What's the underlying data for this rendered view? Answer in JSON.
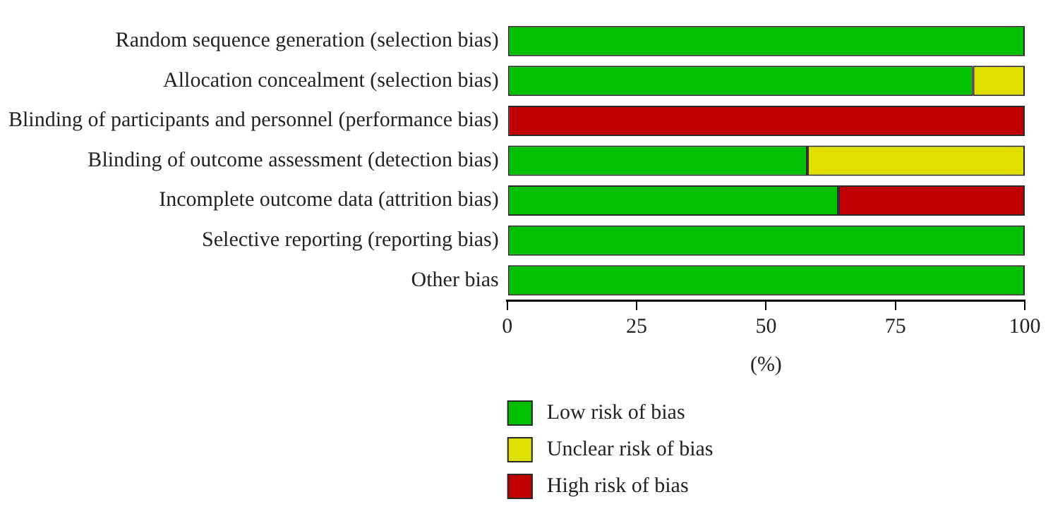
{
  "chart_data": {
    "type": "bar",
    "orientation": "horizontal",
    "stacked": true,
    "xlabel": "(%)",
    "categories": [
      "Random sequence generation (selection bias)",
      "Allocation concealment (selection bias)",
      "Blinding of participants and personnel (performance bias)",
      "Blinding of outcome assessment (detection bias)",
      "Incomplete outcome data (attrition bias)",
      "Selective reporting (reporting bias)",
      "Other bias"
    ],
    "series": [
      {
        "name": "Low risk of bias",
        "color": "#00c000",
        "values": [
          100,
          90,
          0,
          58,
          64,
          100,
          100
        ]
      },
      {
        "name": "Unclear risk of bias",
        "color": "#e0e000",
        "values": [
          0,
          10,
          0,
          42,
          0,
          0,
          0
        ]
      },
      {
        "name": "High risk of bias",
        "color": "#c00000",
        "values": [
          0,
          0,
          100,
          0,
          36,
          0,
          0
        ]
      }
    ],
    "xlim": [
      0,
      100
    ],
    "xticks": [
      0,
      25,
      50,
      75,
      100
    ],
    "grid": false,
    "legend": "bottom"
  }
}
